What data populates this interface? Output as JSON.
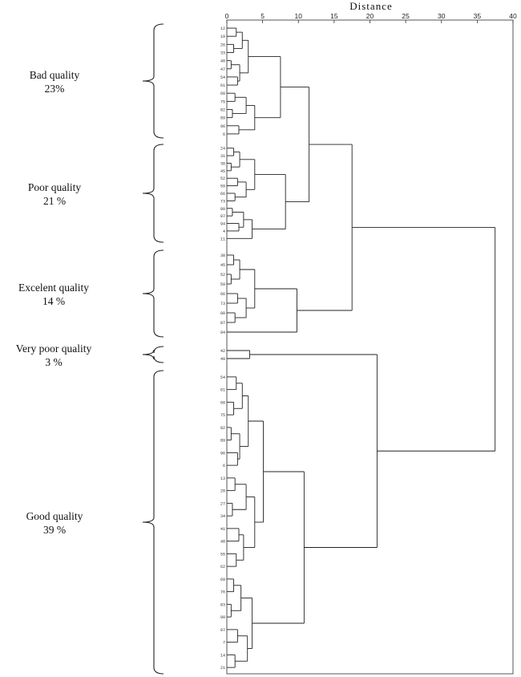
{
  "chart_data": {
    "type": "dendrogram",
    "title": "",
    "xlabel": "Distance",
    "xlim": [
      0,
      40
    ],
    "x_ticks": [
      0,
      5,
      10,
      15,
      20,
      25,
      30,
      35,
      40
    ],
    "clusters": [
      {
        "id": "bad",
        "name": "Bad quality",
        "percent": "23%",
        "leaves": 14
      },
      {
        "id": "poor",
        "name": "Poor quality",
        "percent": "21 %",
        "leaves": 13
      },
      {
        "id": "excelent",
        "name": "Excelent quality",
        "percent": "14 %",
        "leaves": 9
      },
      {
        "id": "very-poor",
        "name": "Very poor quality",
        "percent": "3 %",
        "leaves": 2
      },
      {
        "id": "good",
        "name": "Good quality",
        "percent": "39 %",
        "leaves": 24
      }
    ],
    "merge_heights": {
      "bad_merge": 7.5,
      "poor_merge": 8.2,
      "bad_poor": 11.5,
      "excelent_merge": 9.8,
      "top_group": 17.5,
      "good_merge": 10.8,
      "verypoor_good": 21.0,
      "root": 37.5
    }
  }
}
